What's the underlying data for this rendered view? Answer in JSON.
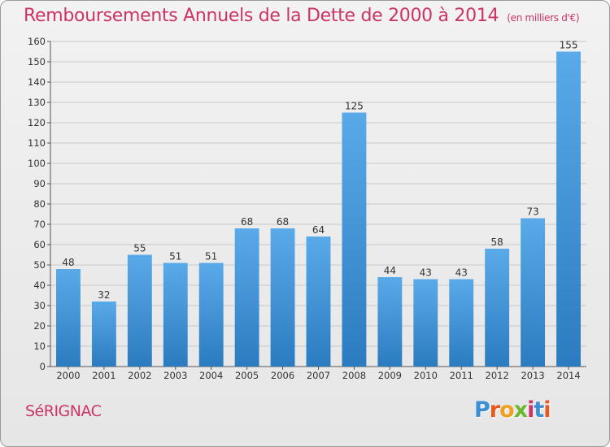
{
  "title": "Remboursements Annuels de la Dette de 2000 à 2014",
  "unit_note": "(en milliers d'€)",
  "commune": "SéRIGNAC",
  "logo": {
    "text": "Proxiti",
    "letters": [
      "P",
      "r",
      "o",
      "x",
      "i",
      "t",
      "i"
    ],
    "colors": [
      "#3a8fd6",
      "#e65a1e",
      "#f0a020",
      "#6ab82e",
      "#cc3366",
      "#3a8fd6",
      "#e65a1e"
    ]
  },
  "colors": {
    "bar_top": "#5aaaea",
    "bar_bottom": "#2b7bc0",
    "accent": "#cc3366"
  },
  "chart_data": {
    "type": "bar",
    "title": "Remboursements Annuels de la Dette de 2000 à 2014",
    "xlabel": "",
    "ylabel": "",
    "ylim": [
      0,
      160
    ],
    "y_ticks": [
      0,
      10,
      20,
      30,
      40,
      50,
      60,
      70,
      80,
      90,
      100,
      110,
      120,
      130,
      140,
      150,
      160
    ],
    "grid": true,
    "categories": [
      "2000",
      "2001",
      "2002",
      "2003",
      "2004",
      "2005",
      "2006",
      "2007",
      "2008",
      "2009",
      "2010",
      "2011",
      "2012",
      "2013",
      "2014"
    ],
    "values": [
      48,
      32,
      55,
      51,
      51,
      68,
      68,
      64,
      125,
      44,
      43,
      43,
      58,
      73,
      155
    ]
  }
}
